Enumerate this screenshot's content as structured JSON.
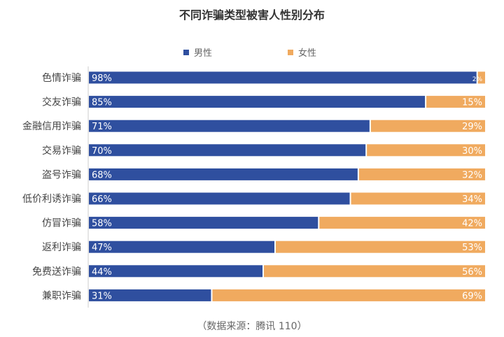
{
  "chart_data": {
    "type": "bar",
    "stacked": true,
    "orientation": "horizontal",
    "percent": true,
    "title": "不同诈骗类型被害人性别分布",
    "source": "（数据来源：腾讯 110）",
    "legend_position": "top",
    "grid": false,
    "xlim": [
      0,
      100
    ],
    "categories": [
      "色情诈骗",
      "交友诈骗",
      "金融信用诈骗",
      "交易诈骗",
      "盗号诈骗",
      "低价利诱诈骗",
      "仿冒诈骗",
      "返利诈骗",
      "免费送诈骗",
      "兼职诈骗"
    ],
    "series": [
      {
        "name": "男性",
        "color": "#2f4f9f",
        "values": [
          98,
          85,
          71,
          70,
          68,
          66,
          58,
          47,
          44,
          31
        ]
      },
      {
        "name": "女性",
        "color": "#f0aa5f",
        "values": [
          2,
          15,
          29,
          30,
          32,
          34,
          42,
          53,
          56,
          69
        ]
      }
    ]
  }
}
